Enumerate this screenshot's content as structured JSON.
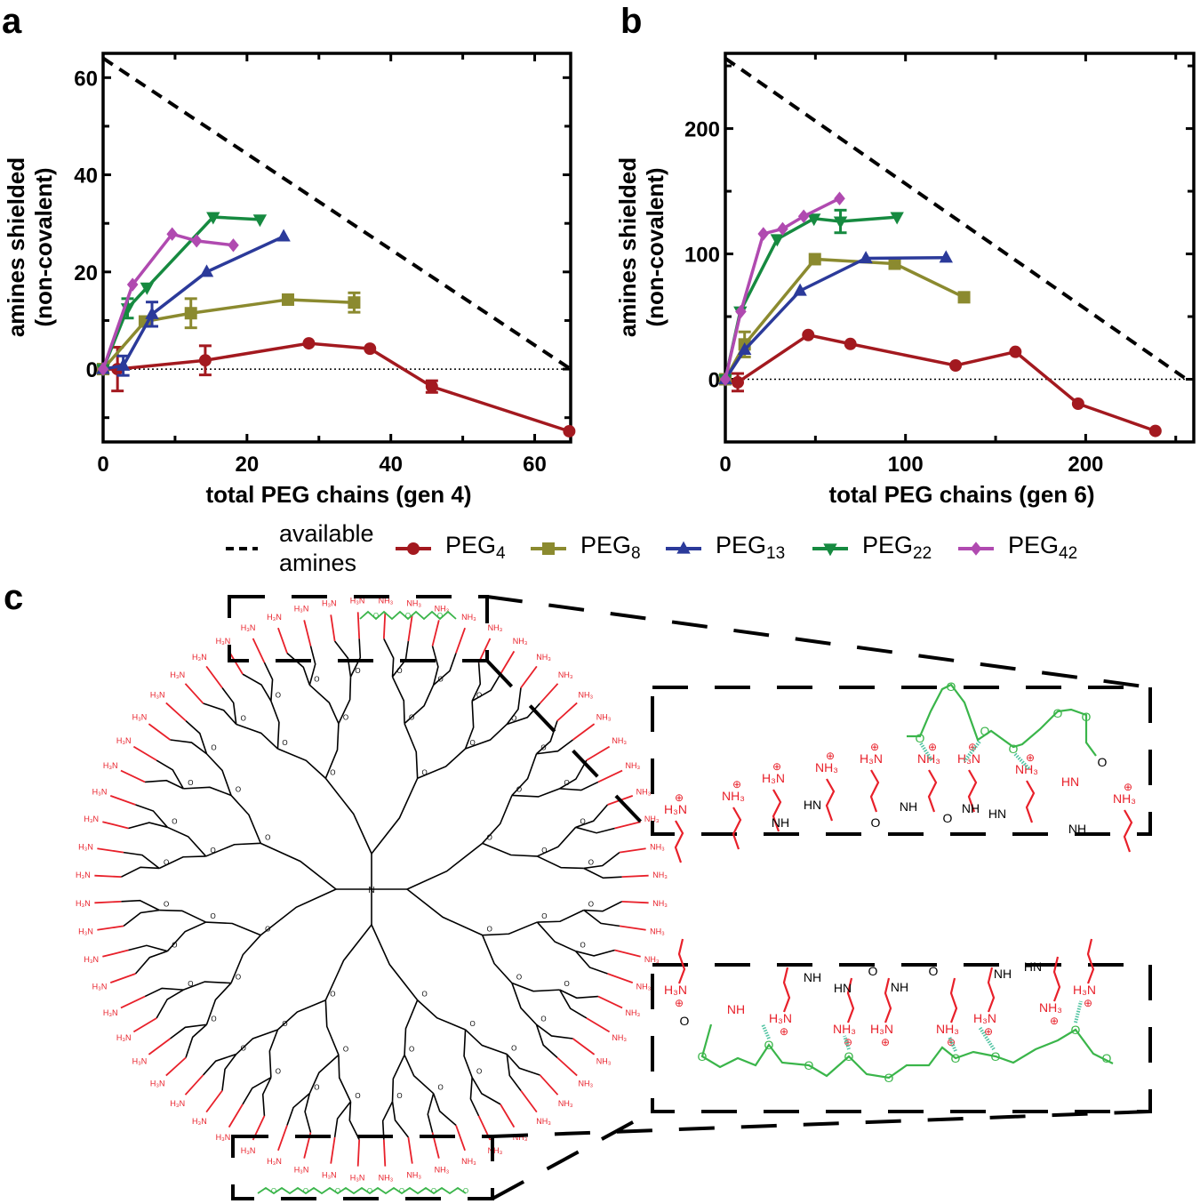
{
  "panels": {
    "a": "a",
    "b": "b",
    "c": "c"
  },
  "chart_data": [
    {
      "type": "line",
      "panel": "a",
      "xlabel": "total PEG chains (gen 4)",
      "ylabel": [
        "amines shielded",
        "(non-covalent)"
      ],
      "xlim": [
        0,
        65
      ],
      "ylim": [
        -15,
        65
      ],
      "xticks": [
        0,
        20,
        40,
        60
      ],
      "yticks": [
        0,
        20,
        40,
        60
      ],
      "grid": false,
      "zero_line": "dotted",
      "series": [
        {
          "name": "available amines",
          "style": "dashed",
          "color": "#000000",
          "x": [
            0,
            65
          ],
          "y": [
            64,
            0
          ]
        },
        {
          "name": "PEG4",
          "marker": "circle",
          "color": "#a3191f",
          "x": [
            0,
            2,
            14.2,
            28.6,
            37.1,
            45.7,
            64.8
          ],
          "y": [
            0,
            0,
            1.8,
            5.3,
            4.2,
            -3.6,
            -12.8
          ],
          "yerr": [
            0,
            4.5,
            3,
            0,
            0,
            1.2,
            0
          ]
        },
        {
          "name": "PEG8",
          "marker": "square",
          "color": "#8b8a2f",
          "x": [
            0,
            5.8,
            12.2,
            25.7,
            34.9
          ],
          "y": [
            0,
            9.8,
            11.5,
            14.3,
            13.7
          ],
          "yerr": [
            0,
            0,
            3,
            0,
            2
          ]
        },
        {
          "name": "PEG13",
          "marker": "triangle-up",
          "color": "#2b3a9a",
          "x": [
            0,
            2.8,
            6.8,
            14.4,
            25.1
          ],
          "y": [
            0,
            0.7,
            11.3,
            20.0,
            27.3
          ],
          "yerr": [
            0,
            2,
            2.5,
            0,
            0
          ]
        },
        {
          "name": "PEG22",
          "marker": "triangle-down",
          "color": "#168a40",
          "x": [
            0,
            3.4,
            6.1,
            15.3,
            21.8
          ],
          "y": [
            0,
            12.5,
            16.8,
            31.3,
            30.8
          ],
          "yerr": [
            0,
            2,
            0,
            0,
            0
          ]
        },
        {
          "name": "PEG42",
          "marker": "diamond",
          "color": "#b04ab0",
          "x": [
            0,
            4.1,
            9.6,
            13.0,
            18.1
          ],
          "y": [
            0,
            17.4,
            27.8,
            26.4,
            25.5
          ],
          "yerr": [
            0,
            0,
            0,
            0,
            0
          ]
        }
      ]
    },
    {
      "type": "line",
      "panel": "b",
      "xlabel": "total PEG chains (gen 6)",
      "ylabel": [
        "amines shielded",
        "(non-covalent)"
      ],
      "xlim": [
        0,
        260
      ],
      "ylim": [
        -50,
        260
      ],
      "xticks": [
        0,
        100,
        200
      ],
      "yticks": [
        0,
        100,
        200
      ],
      "grid": false,
      "zero_line": "dotted",
      "series": [
        {
          "name": "available amines",
          "style": "dashed",
          "color": "#000000",
          "x": [
            0,
            256
          ],
          "y": [
            256,
            0
          ]
        },
        {
          "name": "PEG4",
          "marker": "circle",
          "color": "#a3191f",
          "x": [
            0,
            6.9,
            46,
            69.4,
            127.8,
            161,
            195.8,
            238.7
          ],
          "y": [
            0,
            -2.4,
            35.3,
            28.2,
            11,
            21.9,
            -19.5,
            -41.2
          ],
          "yerr": [
            0,
            7,
            0,
            0,
            0,
            0,
            0,
            0
          ]
        },
        {
          "name": "PEG8",
          "marker": "square",
          "color": "#8b8a2f",
          "x": [
            0,
            10.7,
            49.7,
            94,
            132.5
          ],
          "y": [
            0,
            27.8,
            95.8,
            92.2,
            65.4
          ],
          "yerr": [
            0,
            10,
            0,
            0,
            0
          ]
        },
        {
          "name": "PEG13",
          "marker": "triangle-up",
          "color": "#2b3a9a",
          "x": [
            0,
            10.7,
            41.5,
            78,
            122.5
          ],
          "y": [
            0,
            23.5,
            70.6,
            96.5,
            97
          ],
          "yerr": [
            0,
            0,
            0,
            0,
            0
          ]
        },
        {
          "name": "PEG22",
          "marker": "triangle-down",
          "color": "#168a40",
          "x": [
            0,
            8.3,
            28.8,
            49.2,
            63.9,
            95.3
          ],
          "y": [
            0,
            54.1,
            111.8,
            128.2,
            125.9,
            129.4
          ],
          "yerr": [
            0,
            0,
            0,
            0,
            9,
            0
          ]
        },
        {
          "name": "PEG42",
          "marker": "diamond",
          "color": "#b04ab0",
          "x": [
            0,
            8.6,
            21.1,
            31.8,
            43.5,
            63.4
          ],
          "y": [
            0,
            54,
            116,
            120,
            130,
            144.2
          ],
          "yerr": [
            0,
            0,
            0,
            0,
            0,
            0
          ]
        }
      ]
    }
  ],
  "legend": {
    "placement": "bottom",
    "items": [
      {
        "label_lines": [
          "available",
          "amines"
        ],
        "style": "dashed",
        "color": "#000000"
      },
      {
        "base": "PEG",
        "sub": "4",
        "marker": "circle",
        "color": "#a3191f"
      },
      {
        "base": "PEG",
        "sub": "8",
        "marker": "square",
        "color": "#8b8a2f"
      },
      {
        "base": "PEG",
        "sub": "13",
        "marker": "triangle-up",
        "color": "#2b3a9a"
      },
      {
        "base": "PEG",
        "sub": "22",
        "marker": "triangle-down",
        "color": "#168a40"
      },
      {
        "base": "PEG",
        "sub": "42",
        "marker": "diamond",
        "color": "#b04ab0"
      }
    ]
  },
  "diagram": {
    "colors": {
      "backbone": "#000000",
      "amine": "#e8202a",
      "peg": "#3ab54a",
      "hbond": "#4fc3a1"
    },
    "labels": {
      "amine_left": "H₃N",
      "amine_right": "NH₃",
      "amide_nh": "NH",
      "amide_hn": "HN",
      "oxygen": "O",
      "charge": "⊕"
    }
  }
}
